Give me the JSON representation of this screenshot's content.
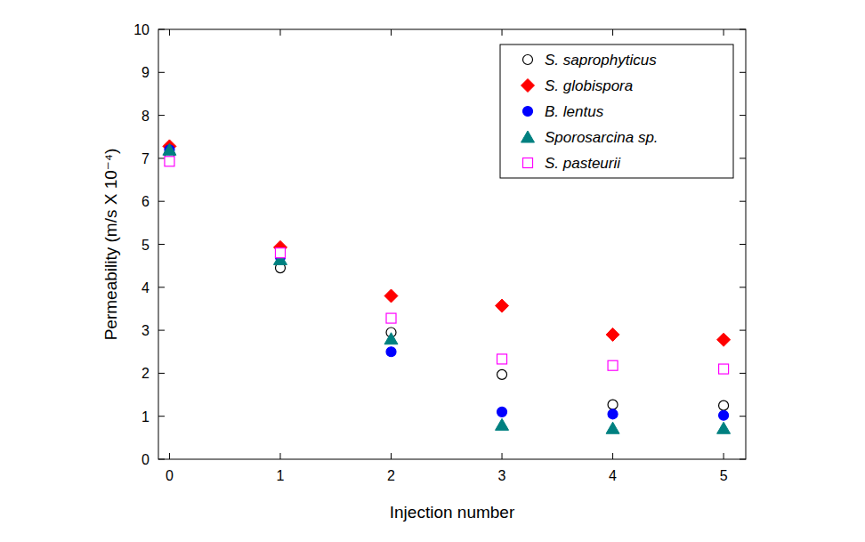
{
  "chart_data": {
    "type": "scatter",
    "x_label": "Injection number",
    "y_label": "Permeability (m/s X 10⁻⁴)",
    "x": [
      0,
      1,
      2,
      3,
      4,
      5
    ],
    "series": [
      {
        "name": "S. saprophyticus",
        "color": "#000000",
        "marker": "circle-open",
        "values": [
          7.1,
          4.45,
          2.95,
          1.97,
          1.27,
          1.25
        ]
      },
      {
        "name": "S. globispora",
        "color": "#ff0000",
        "marker": "diamond",
        "values": [
          7.28,
          4.93,
          3.8,
          3.57,
          2.9,
          2.78
        ]
      },
      {
        "name": "B. lentus",
        "color": "#0000ff",
        "marker": "circle",
        "values": [
          7.2,
          4.7,
          2.5,
          1.1,
          1.05,
          1.02
        ]
      },
      {
        "name": "Sporosarcina sp.",
        "color": "#008080",
        "marker": "triangle",
        "values": [
          7.2,
          4.65,
          2.8,
          0.8,
          0.72,
          0.72
        ]
      },
      {
        "name": "S. pasteurii",
        "color": "#ff00ff",
        "marker": "square-open",
        "values": [
          6.93,
          4.8,
          3.28,
          2.33,
          2.18,
          2.1
        ]
      }
    ],
    "xlim": [
      -0.1,
      5.2
    ],
    "xticks": [
      0,
      1,
      2,
      3,
      4,
      5
    ],
    "ylim": [
      0,
      10
    ],
    "yticks": [
      0,
      1,
      2,
      3,
      4,
      5,
      6,
      7,
      8,
      9,
      10
    ],
    "legend": "top-right",
    "grid": false
  }
}
